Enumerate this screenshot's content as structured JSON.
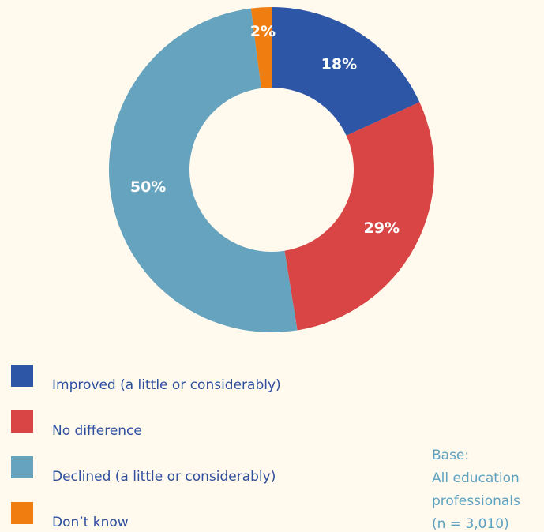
{
  "chart_data": {
    "type": "donut",
    "categories": [
      "Improved (a little or considerably)",
      "No difference",
      "Declined (a little or considerably)",
      "Don’t know"
    ],
    "values": [
      18,
      29,
      50,
      2
    ],
    "value_labels": [
      "18%",
      "29%",
      "50%",
      "2%"
    ],
    "colors": [
      "#2d56a6",
      "#d94545",
      "#66a3bf",
      "#f07d10"
    ],
    "note": [
      "Base:",
      "All education",
      "professionals",
      "(n = 3,010)"
    ]
  }
}
